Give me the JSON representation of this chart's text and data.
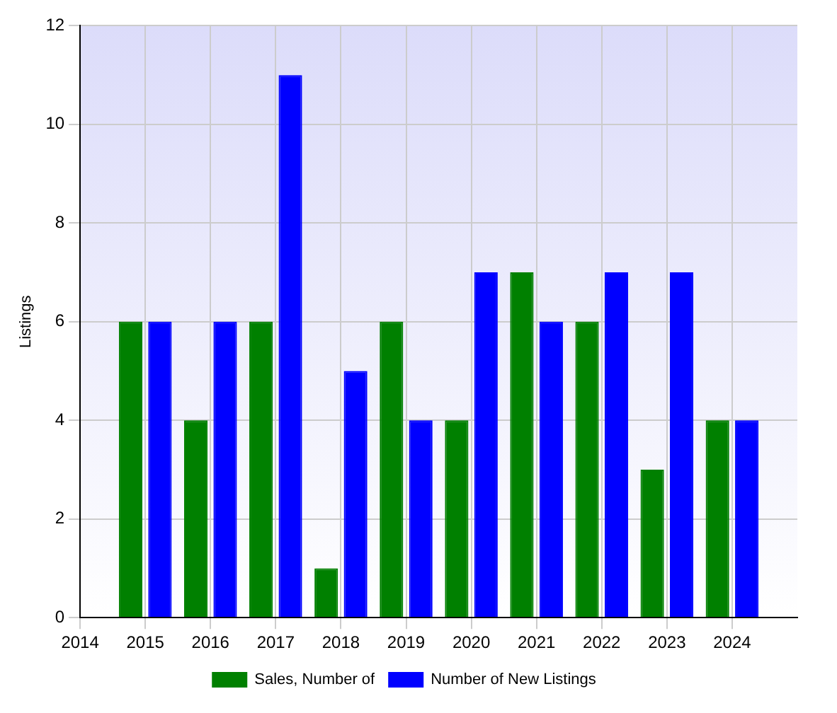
{
  "chart_data": {
    "type": "bar",
    "ylabel": "Listings",
    "x": [
      2015,
      2016,
      2017,
      2018,
      2019,
      2020,
      2021,
      2022,
      2023,
      2024
    ],
    "series": [
      {
        "name": "Sales, Number of",
        "color": "#008000",
        "values": [
          6,
          4,
          6,
          1,
          6,
          4,
          7,
          6,
          3,
          4
        ]
      },
      {
        "name": "Number of New Listings",
        "color": "#0000ff",
        "values": [
          6,
          6,
          11,
          5,
          4,
          7,
          6,
          7,
          7,
          4
        ]
      }
    ],
    "xlim": [
      2014,
      2025
    ],
    "xticks": [
      2014,
      2015,
      2016,
      2017,
      2018,
      2019,
      2020,
      2021,
      2022,
      2023,
      2024
    ],
    "ylim": [
      0,
      12
    ],
    "yticks": [
      0,
      2,
      4,
      6,
      8,
      10,
      12
    ],
    "grid": true,
    "legend": "bottom"
  }
}
